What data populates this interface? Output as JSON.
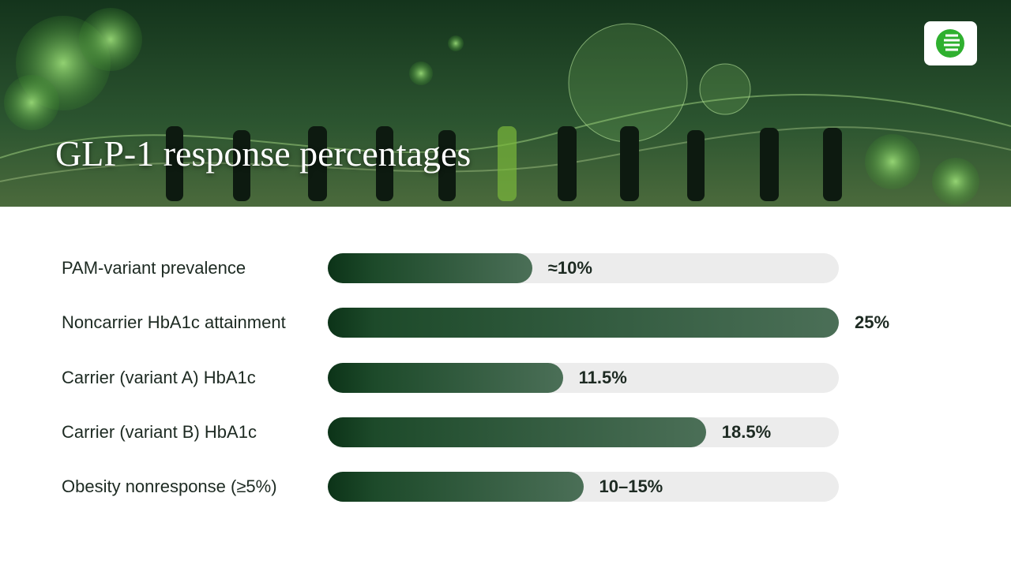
{
  "chart_data": {
    "type": "bar",
    "orientation": "horizontal",
    "title": "GLP-1 response percentages",
    "categories": [
      "PAM-variant prevalence",
      "Noncarrier HbA1c attainment",
      "Carrier (variant A) HbA1c",
      "Carrier (variant B) HbA1c",
      "Obesity nonresponse (≥5%)"
    ],
    "values": [
      10,
      25,
      11.5,
      18.5,
      12.5
    ],
    "value_labels": [
      "≈10%",
      "25%",
      "11.5%",
      "18.5%",
      "10–15%"
    ],
    "color": "#4b6f57",
    "xlim": [
      0,
      25
    ]
  }
}
